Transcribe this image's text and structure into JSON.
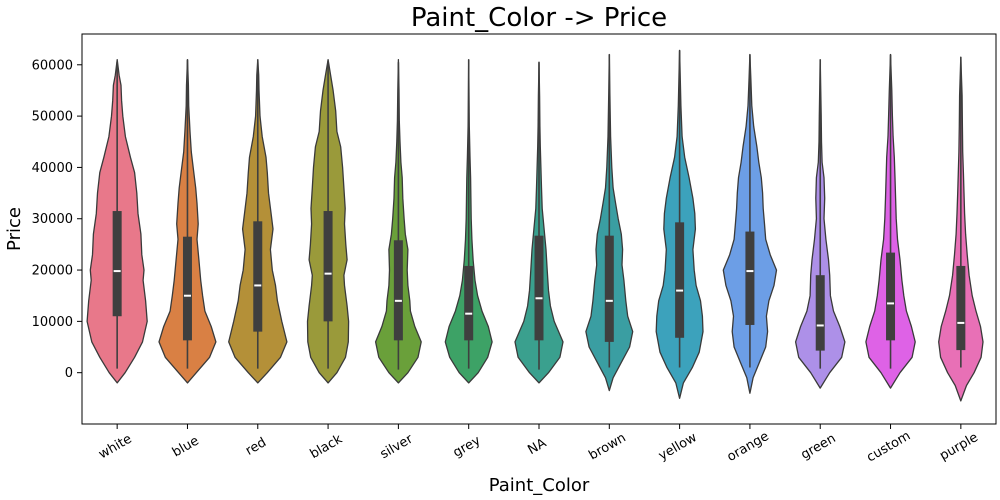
{
  "chart_data": {
    "type": "violin",
    "title": "Paint_Color -> Price",
    "xlabel": "Paint_Color",
    "ylabel": "Price",
    "ylim": [
      -10000,
      66000
    ],
    "yticks": [
      0,
      10000,
      20000,
      30000,
      40000,
      50000,
      60000
    ],
    "categories": [
      "white",
      "blue",
      "red",
      "black",
      "silver",
      "grey",
      "NA",
      "brown",
      "yellow",
      "orange",
      "green",
      "custom",
      "purple"
    ],
    "colors": [
      "#e8788a",
      "#d98044",
      "#b49038",
      "#9a9a3a",
      "#6aa03a",
      "#3da266",
      "#3aa08e",
      "#3a9ea2",
      "#3ca2bc",
      "#6c9ee6",
      "#ad90e8",
      "#de62e6",
      "#e870b6"
    ],
    "stats": [
      {
        "min": 800,
        "q1": 11000,
        "median": 19800,
        "q3": 31500,
        "max": 60500
      },
      {
        "min": 800,
        "q1": 6300,
        "median": 15000,
        "q3": 26500,
        "max": 61000
      },
      {
        "min": 800,
        "q1": 8000,
        "median": 17000,
        "q3": 29500,
        "max": 61000
      },
      {
        "min": 800,
        "q1": 10000,
        "median": 19300,
        "q3": 31500,
        "max": 60800
      },
      {
        "min": 600,
        "q1": 6300,
        "median": 14000,
        "q3": 25800,
        "max": 60500
      },
      {
        "min": 800,
        "q1": 6300,
        "median": 11500,
        "q3": 20800,
        "max": 61000
      },
      {
        "min": 600,
        "q1": 6300,
        "median": 14500,
        "q3": 26700,
        "max": 60500
      },
      {
        "min": 1000,
        "q1": 6000,
        "median": 14000,
        "q3": 26700,
        "max": 62000
      },
      {
        "min": 1000,
        "q1": 6800,
        "median": 16000,
        "q3": 29300,
        "max": 62800
      },
      {
        "min": 1000,
        "q1": 9300,
        "median": 19800,
        "q3": 27500,
        "max": 62000
      },
      {
        "min": 800,
        "q1": 4300,
        "median": 9200,
        "q3": 19000,
        "max": 61000
      },
      {
        "min": 800,
        "q1": 6300,
        "median": 13500,
        "q3": 23400,
        "max": 62000
      },
      {
        "min": 1000,
        "q1": 4400,
        "median": 9700,
        "q3": 20800,
        "max": 61500
      }
    ],
    "densities": [
      [
        [
          -2000,
          0
        ],
        [
          0,
          0.25
        ],
        [
          3000,
          0.55
        ],
        [
          6000,
          0.8
        ],
        [
          10000,
          0.95
        ],
        [
          14000,
          0.9
        ],
        [
          18000,
          0.82
        ],
        [
          20000,
          0.85
        ],
        [
          23000,
          0.78
        ],
        [
          27000,
          0.75
        ],
        [
          31000,
          0.66
        ],
        [
          35000,
          0.62
        ],
        [
          39000,
          0.55
        ],
        [
          42000,
          0.42
        ],
        [
          46000,
          0.26
        ],
        [
          50000,
          0.18
        ],
        [
          53000,
          0.14
        ],
        [
          56000,
          0.12
        ],
        [
          58000,
          0.06
        ],
        [
          61000,
          0
        ]
      ],
      [
        [
          -2000,
          0
        ],
        [
          0,
          0.28
        ],
        [
          3000,
          0.7
        ],
        [
          6000,
          0.9
        ],
        [
          9000,
          0.75
        ],
        [
          12000,
          0.55
        ],
        [
          15000,
          0.48
        ],
        [
          18000,
          0.42
        ],
        [
          22000,
          0.36
        ],
        [
          26000,
          0.3
        ],
        [
          29000,
          0.34
        ],
        [
          33000,
          0.3
        ],
        [
          36000,
          0.26
        ],
        [
          39000,
          0.2
        ],
        [
          43000,
          0.12
        ],
        [
          47000,
          0.08
        ],
        [
          52000,
          0.04
        ],
        [
          56000,
          0.03
        ],
        [
          61000,
          0
        ]
      ],
      [
        [
          -2000,
          0
        ],
        [
          0,
          0.3
        ],
        [
          3000,
          0.72
        ],
        [
          6000,
          0.92
        ],
        [
          10000,
          0.76
        ],
        [
          14000,
          0.62
        ],
        [
          17000,
          0.56
        ],
        [
          20000,
          0.46
        ],
        [
          24000,
          0.4
        ],
        [
          28000,
          0.48
        ],
        [
          31000,
          0.42
        ],
        [
          35000,
          0.34
        ],
        [
          39000,
          0.3
        ],
        [
          42000,
          0.26
        ],
        [
          46000,
          0.14
        ],
        [
          50000,
          0.07
        ],
        [
          55000,
          0.04
        ],
        [
          58000,
          0.03
        ],
        [
          61000,
          0
        ]
      ],
      [
        [
          -2000,
          0
        ],
        [
          0,
          0.28
        ],
        [
          3000,
          0.55
        ],
        [
          6000,
          0.64
        ],
        [
          10000,
          0.65
        ],
        [
          13000,
          0.6
        ],
        [
          17000,
          0.52
        ],
        [
          19000,
          0.5
        ],
        [
          22000,
          0.6
        ],
        [
          25000,
          0.56
        ],
        [
          29000,
          0.52
        ],
        [
          32000,
          0.54
        ],
        [
          36000,
          0.5
        ],
        [
          40000,
          0.46
        ],
        [
          44000,
          0.4
        ],
        [
          47000,
          0.28
        ],
        [
          51000,
          0.24
        ],
        [
          55000,
          0.16
        ],
        [
          58000,
          0.08
        ],
        [
          61000,
          0
        ]
      ],
      [
        [
          -2000,
          0
        ],
        [
          0,
          0.3
        ],
        [
          3000,
          0.62
        ],
        [
          6000,
          0.72
        ],
        [
          9000,
          0.52
        ],
        [
          12000,
          0.38
        ],
        [
          14000,
          0.36
        ],
        [
          17000,
          0.3
        ],
        [
          20000,
          0.28
        ],
        [
          24000,
          0.3
        ],
        [
          27000,
          0.22
        ],
        [
          30000,
          0.18
        ],
        [
          34000,
          0.14
        ],
        [
          38000,
          0.12
        ],
        [
          41000,
          0.08
        ],
        [
          45000,
          0.05
        ],
        [
          49000,
          0.03
        ],
        [
          55000,
          0.02
        ],
        [
          61000,
          0
        ]
      ],
      [
        [
          -2000,
          0
        ],
        [
          0,
          0.3
        ],
        [
          3000,
          0.6
        ],
        [
          6000,
          0.74
        ],
        [
          9000,
          0.62
        ],
        [
          12000,
          0.42
        ],
        [
          15000,
          0.28
        ],
        [
          18000,
          0.2
        ],
        [
          22000,
          0.14
        ],
        [
          26000,
          0.1
        ],
        [
          30000,
          0.08
        ],
        [
          34000,
          0.07
        ],
        [
          38000,
          0.06
        ],
        [
          42000,
          0.04
        ],
        [
          48000,
          0.02
        ],
        [
          61000,
          0
        ]
      ],
      [
        [
          -2000,
          0
        ],
        [
          0,
          0.3
        ],
        [
          3000,
          0.66
        ],
        [
          6000,
          0.76
        ],
        [
          10000,
          0.48
        ],
        [
          13000,
          0.36
        ],
        [
          16000,
          0.3
        ],
        [
          20000,
          0.26
        ],
        [
          24000,
          0.22
        ],
        [
          28000,
          0.16
        ],
        [
          32000,
          0.1
        ],
        [
          36000,
          0.08
        ],
        [
          40000,
          0.06
        ],
        [
          44000,
          0.04
        ],
        [
          48000,
          0.03
        ],
        [
          54000,
          0.02
        ],
        [
          60500,
          0
        ]
      ],
      [
        [
          -3500,
          0
        ],
        [
          -1000,
          0.12
        ],
        [
          2000,
          0.38
        ],
        [
          5000,
          0.64
        ],
        [
          8000,
          0.74
        ],
        [
          11000,
          0.58
        ],
        [
          14000,
          0.52
        ],
        [
          18000,
          0.46
        ],
        [
          21000,
          0.4
        ],
        [
          24000,
          0.42
        ],
        [
          27000,
          0.38
        ],
        [
          30000,
          0.28
        ],
        [
          33000,
          0.2
        ],
        [
          36000,
          0.12
        ],
        [
          40000,
          0.08
        ],
        [
          46000,
          0.04
        ],
        [
          54000,
          0.02
        ],
        [
          62000,
          0
        ]
      ],
      [
        [
          -5000,
          0
        ],
        [
          -2000,
          0.12
        ],
        [
          1000,
          0.4
        ],
        [
          4000,
          0.62
        ],
        [
          8000,
          0.74
        ],
        [
          11000,
          0.72
        ],
        [
          14000,
          0.66
        ],
        [
          17000,
          0.52
        ],
        [
          20000,
          0.46
        ],
        [
          24000,
          0.42
        ],
        [
          28000,
          0.5
        ],
        [
          31000,
          0.48
        ],
        [
          34000,
          0.42
        ],
        [
          38000,
          0.3
        ],
        [
          42000,
          0.16
        ],
        [
          46000,
          0.08
        ],
        [
          52000,
          0.04
        ],
        [
          58000,
          0.02
        ],
        [
          62800,
          0
        ]
      ],
      [
        [
          -4000,
          0
        ],
        [
          -1000,
          0.1
        ],
        [
          2000,
          0.3
        ],
        [
          5000,
          0.5
        ],
        [
          8000,
          0.56
        ],
        [
          11000,
          0.52
        ],
        [
          14000,
          0.6
        ],
        [
          17000,
          0.76
        ],
        [
          20000,
          0.84
        ],
        [
          23000,
          0.64
        ],
        [
          26000,
          0.5
        ],
        [
          29000,
          0.46
        ],
        [
          32000,
          0.42
        ],
        [
          35000,
          0.4
        ],
        [
          38000,
          0.36
        ],
        [
          41000,
          0.28
        ],
        [
          44000,
          0.22
        ],
        [
          48000,
          0.12
        ],
        [
          52000,
          0.06
        ],
        [
          57000,
          0.03
        ],
        [
          62000,
          0
        ]
      ],
      [
        [
          -3000,
          0
        ],
        [
          0,
          0.3
        ],
        [
          3000,
          0.68
        ],
        [
          6000,
          0.78
        ],
        [
          9000,
          0.62
        ],
        [
          12000,
          0.42
        ],
        [
          15000,
          0.32
        ],
        [
          19000,
          0.3
        ],
        [
          22000,
          0.26
        ],
        [
          26000,
          0.18
        ],
        [
          30000,
          0.12
        ],
        [
          34000,
          0.14
        ],
        [
          38000,
          0.12
        ],
        [
          41000,
          0.06
        ],
        [
          45000,
          0.04
        ],
        [
          50000,
          0.03
        ],
        [
          61000,
          0
        ]
      ],
      [
        [
          -3000,
          0
        ],
        [
          0,
          0.3
        ],
        [
          3000,
          0.68
        ],
        [
          6000,
          0.78
        ],
        [
          9000,
          0.66
        ],
        [
          12000,
          0.5
        ],
        [
          15000,
          0.42
        ],
        [
          18000,
          0.36
        ],
        [
          22000,
          0.3
        ],
        [
          26000,
          0.22
        ],
        [
          30000,
          0.18
        ],
        [
          34000,
          0.16
        ],
        [
          38000,
          0.14
        ],
        [
          42000,
          0.12
        ],
        [
          46000,
          0.08
        ],
        [
          50000,
          0.06
        ],
        [
          55000,
          0.04
        ],
        [
          62000,
          0
        ]
      ],
      [
        [
          -5500,
          0
        ],
        [
          -2500,
          0.18
        ],
        [
          0,
          0.42
        ],
        [
          3000,
          0.64
        ],
        [
          6000,
          0.7
        ],
        [
          9000,
          0.62
        ],
        [
          12000,
          0.48
        ],
        [
          15000,
          0.36
        ],
        [
          19000,
          0.26
        ],
        [
          23000,
          0.2
        ],
        [
          27000,
          0.15
        ],
        [
          31000,
          0.12
        ],
        [
          35000,
          0.1
        ],
        [
          39000,
          0.08
        ],
        [
          43000,
          0.06
        ],
        [
          48000,
          0.05
        ],
        [
          54000,
          0.04
        ],
        [
          61500,
          0
        ]
      ]
    ]
  }
}
